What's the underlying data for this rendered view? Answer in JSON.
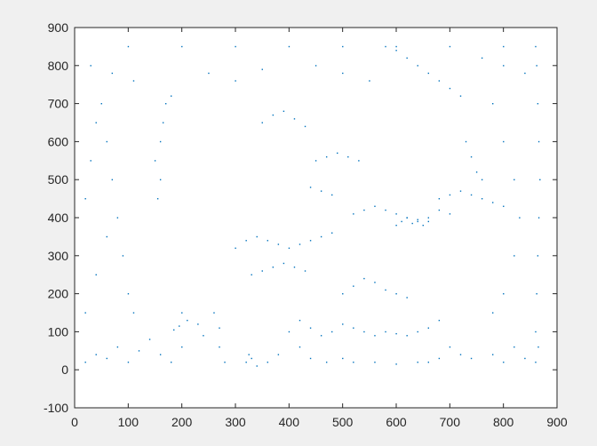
{
  "chart_data": {
    "type": "scatter",
    "title": "",
    "xlabel": "",
    "ylabel": "",
    "xlim": [
      0,
      900
    ],
    "ylim": [
      -100,
      900
    ],
    "x_ticks": [
      0,
      100,
      200,
      300,
      400,
      500,
      600,
      700,
      800,
      900
    ],
    "y_ticks": [
      -100,
      0,
      100,
      200,
      300,
      400,
      500,
      600,
      700,
      800,
      900
    ],
    "grid": false,
    "legend": "none",
    "marker": "point",
    "colors": {
      "series": "#0072bd",
      "axes_bg": "#ffffff",
      "figure_bg": "#f0f0f0",
      "axis": "#262626"
    },
    "series": [
      {
        "points_description": "dense edge-detected point cloud of a face portrait; approximate sampled points",
        "points": [
          [
            20,
            20
          ],
          [
            40,
            40
          ],
          [
            60,
            30
          ],
          [
            80,
            60
          ],
          [
            100,
            20
          ],
          [
            120,
            50
          ],
          [
            140,
            80
          ],
          [
            160,
            40
          ],
          [
            180,
            20
          ],
          [
            200,
            60
          ],
          [
            230,
            120
          ],
          [
            260,
            150
          ],
          [
            270,
            110
          ],
          [
            240,
            90
          ],
          [
            210,
            130
          ],
          [
            200,
            150
          ],
          [
            195,
            115
          ],
          [
            185,
            105
          ],
          [
            270,
            60
          ],
          [
            280,
            20
          ],
          [
            320,
            20
          ],
          [
            325,
            40
          ],
          [
            330,
            30
          ],
          [
            340,
            10
          ],
          [
            360,
            20
          ],
          [
            380,
            40
          ],
          [
            420,
            60
          ],
          [
            440,
            30
          ],
          [
            470,
            20
          ],
          [
            500,
            30
          ],
          [
            520,
            20
          ],
          [
            560,
            20
          ],
          [
            600,
            15
          ],
          [
            640,
            20
          ],
          [
            660,
            20
          ],
          [
            680,
            30
          ],
          [
            700,
            60
          ],
          [
            720,
            40
          ],
          [
            740,
            30
          ],
          [
            780,
            40
          ],
          [
            800,
            20
          ],
          [
            820,
            60
          ],
          [
            840,
            30
          ],
          [
            860,
            20
          ],
          [
            865,
            60
          ],
          [
            400,
            100
          ],
          [
            420,
            130
          ],
          [
            440,
            110
          ],
          [
            460,
            90
          ],
          [
            480,
            100
          ],
          [
            500,
            120
          ],
          [
            520,
            110
          ],
          [
            540,
            100
          ],
          [
            560,
            90
          ],
          [
            580,
            100
          ],
          [
            600,
            95
          ],
          [
            620,
            90
          ],
          [
            640,
            100
          ],
          [
            660,
            110
          ],
          [
            680,
            130
          ],
          [
            500,
            200
          ],
          [
            520,
            220
          ],
          [
            540,
            240
          ],
          [
            560,
            230
          ],
          [
            580,
            210
          ],
          [
            600,
            200
          ],
          [
            620,
            190
          ],
          [
            300,
            320
          ],
          [
            320,
            340
          ],
          [
            340,
            350
          ],
          [
            360,
            340
          ],
          [
            380,
            330
          ],
          [
            400,
            320
          ],
          [
            420,
            330
          ],
          [
            440,
            340
          ],
          [
            460,
            350
          ],
          [
            480,
            360
          ],
          [
            520,
            410
          ],
          [
            540,
            420
          ],
          [
            560,
            430
          ],
          [
            580,
            420
          ],
          [
            600,
            410
          ],
          [
            620,
            400
          ],
          [
            640,
            390
          ],
          [
            660,
            400
          ],
          [
            680,
            420
          ],
          [
            700,
            410
          ],
          [
            600,
            380
          ],
          [
            610,
            390
          ],
          [
            620,
            400
          ],
          [
            630,
            385
          ],
          [
            640,
            395
          ],
          [
            650,
            380
          ],
          [
            660,
            390
          ],
          [
            150,
            550
          ],
          [
            160,
            600
          ],
          [
            165,
            650
          ],
          [
            170,
            700
          ],
          [
            180,
            720
          ],
          [
            160,
            500
          ],
          [
            155,
            450
          ],
          [
            350,
            650
          ],
          [
            370,
            670
          ],
          [
            390,
            680
          ],
          [
            410,
            660
          ],
          [
            430,
            640
          ],
          [
            580,
            850
          ],
          [
            600,
            840
          ],
          [
            620,
            820
          ],
          [
            640,
            800
          ],
          [
            660,
            780
          ],
          [
            680,
            760
          ],
          [
            700,
            740
          ],
          [
            720,
            720
          ],
          [
            730,
            600
          ],
          [
            740,
            560
          ],
          [
            750,
            520
          ],
          [
            760,
            500
          ],
          [
            860,
            100
          ],
          [
            862,
            200
          ],
          [
            864,
            300
          ],
          [
            866,
            400
          ],
          [
            868,
            500
          ],
          [
            866,
            600
          ],
          [
            864,
            700
          ],
          [
            862,
            800
          ],
          [
            860,
            850
          ],
          [
            100,
            850
          ],
          [
            200,
            850
          ],
          [
            300,
            850
          ],
          [
            400,
            850
          ],
          [
            500,
            850
          ],
          [
            600,
            850
          ],
          [
            700,
            850
          ],
          [
            800,
            850
          ],
          [
            50,
            700
          ],
          [
            60,
            600
          ],
          [
            70,
            500
          ],
          [
            80,
            400
          ],
          [
            90,
            300
          ],
          [
            100,
            200
          ],
          [
            110,
            150
          ],
          [
            780,
            700
          ],
          [
            800,
            600
          ],
          [
            820,
            500
          ],
          [
            830,
            400
          ],
          [
            820,
            300
          ],
          [
            800,
            200
          ],
          [
            780,
            150
          ],
          [
            450,
            550
          ],
          [
            470,
            560
          ],
          [
            490,
            570
          ],
          [
            510,
            560
          ],
          [
            530,
            550
          ],
          [
            440,
            480
          ],
          [
            460,
            470
          ],
          [
            480,
            460
          ],
          [
            330,
            250
          ],
          [
            350,
            260
          ],
          [
            370,
            270
          ],
          [
            390,
            280
          ],
          [
            410,
            270
          ],
          [
            430,
            260
          ],
          [
            680,
            450
          ],
          [
            700,
            460
          ],
          [
            720,
            470
          ],
          [
            740,
            460
          ],
          [
            760,
            450
          ],
          [
            780,
            440
          ],
          [
            800,
            430
          ],
          [
            30,
            800
          ],
          [
            70,
            780
          ],
          [
            110,
            760
          ],
          [
            250,
            780
          ],
          [
            300,
            760
          ],
          [
            350,
            790
          ],
          [
            450,
            800
          ],
          [
            500,
            780
          ],
          [
            550,
            760
          ],
          [
            760,
            820
          ],
          [
            800,
            800
          ],
          [
            840,
            780
          ],
          [
            20,
            150
          ],
          [
            40,
            250
          ],
          [
            60,
            350
          ],
          [
            20,
            450
          ],
          [
            30,
            550
          ],
          [
            40,
            650
          ]
        ]
      }
    ]
  }
}
